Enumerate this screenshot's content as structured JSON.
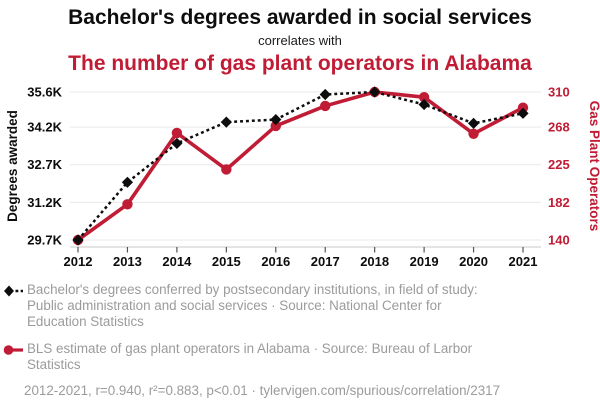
{
  "colors": {
    "accent_red": "#C11C35",
    "series_black": "#0d0d0d",
    "legend_gray": "#9b9b9b",
    "gridline": "#e9e9e9",
    "axis_line": "#c8c8c8",
    "tick": "#555555"
  },
  "chart_data": {
    "type": "line",
    "title": "Bachelor's degrees awarded in social services",
    "connector": "correlates with",
    "subtitle": "The number of gas plant operators in Alabama",
    "x": [
      2012,
      2013,
      2014,
      2015,
      2016,
      2017,
      2018,
      2019,
      2020,
      2021
    ],
    "series": [
      {
        "name": "Bachelor's degrees conferred by postsecondary institutions, in field of study: Public administration and social services",
        "source": "National Center for Education Statistics",
        "axis": "left",
        "units": "thousands of degrees awarded",
        "color": "#0d0d0d",
        "line_style": "dashed",
        "marker": "diamond",
        "values": [
          29.7,
          32.0,
          33.55,
          34.4,
          34.5,
          35.5,
          35.6,
          35.1,
          34.35,
          34.75
        ]
      },
      {
        "name": "BLS estimate of gas plant operators in Alabama",
        "source": "Bureau of Larbor Statistics",
        "axis": "right",
        "units": "gas plant operators",
        "color": "#C11C35",
        "line_style": "solid",
        "marker": "circle",
        "values": [
          140,
          181,
          263,
          221,
          271,
          294,
          310,
          304,
          262,
          292
        ]
      }
    ],
    "left_axis": {
      "label": "Degrees awarded",
      "tick_labels": [
        "35.6K",
        "34.2K",
        "32.7K",
        "31.2K",
        "29.7K"
      ],
      "tick_values": [
        35.6,
        34.2,
        32.7,
        31.2,
        29.7
      ],
      "min": 29.7,
      "max": 35.6
    },
    "right_axis": {
      "label": "Gas Plant Operators",
      "tick_labels": [
        "310",
        "268",
        "225",
        "182",
        "140"
      ],
      "tick_values": [
        310,
        268,
        225,
        182,
        140
      ],
      "min": 140,
      "max": 310
    },
    "grid": "horizontal",
    "legend_position": "bottom"
  },
  "legend": [
    {
      "text": "Bachelor's degrees conferred by postsecondary institutions, in field of study: Public administration and social services · Source: National Center for Education Statistics"
    },
    {
      "text": "BLS estimate of gas plant operators in Alabama · Source: Bureau of Larbor Statistics"
    }
  ],
  "footer": "2012-2021, r=0.940, r²=0.883, p<0.01 · tylervigen.com/spurious/correlation/2317"
}
